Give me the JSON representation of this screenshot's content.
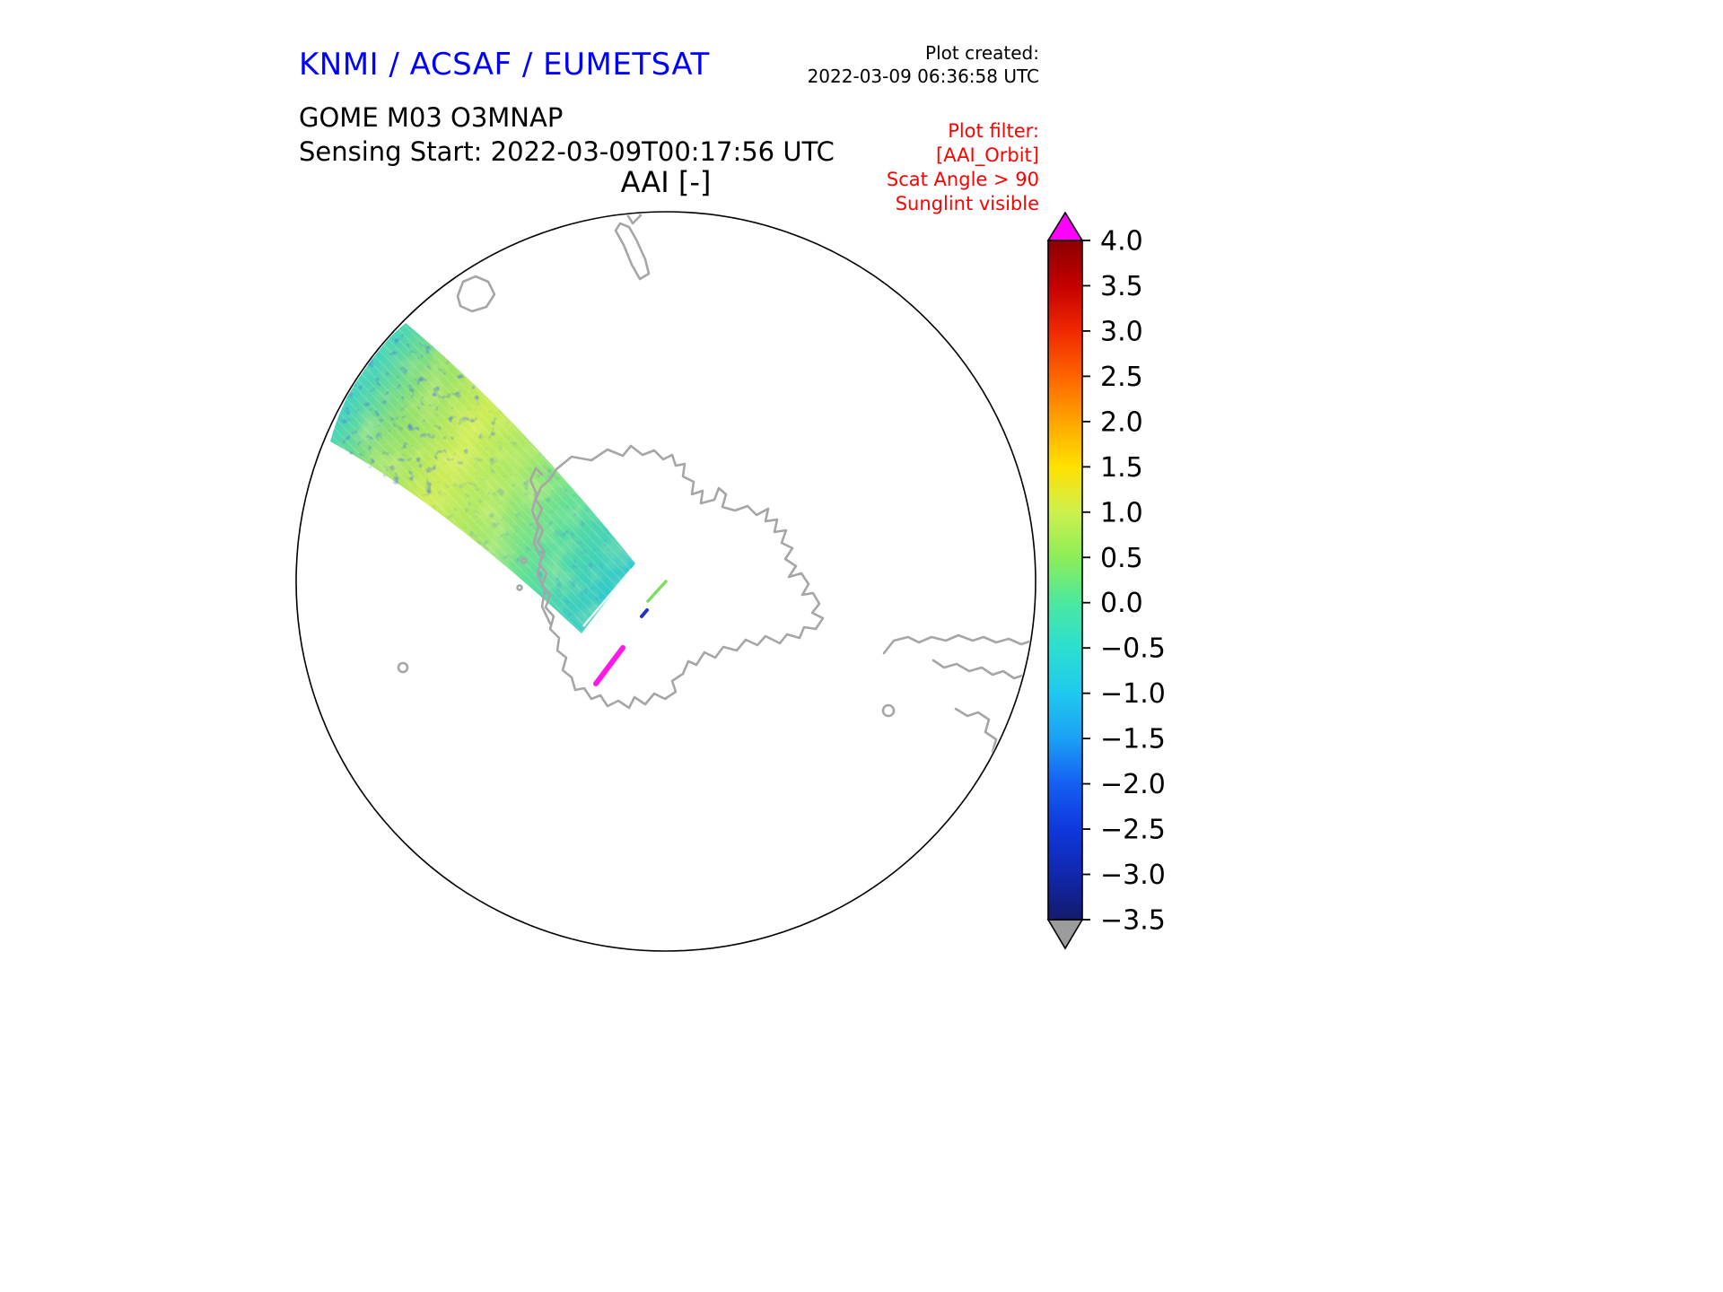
{
  "header": {
    "agency_title": "KNMI / ACSAF / EUMETSAT",
    "agency_color": "#0000ff",
    "plot_created_label": "Plot created:",
    "plot_created_value": "2022-03-09 06:36:58 UTC",
    "product_line": "GOME M03 O3MNAP",
    "sensing_line": "Sensing Start: 2022-03-09T00:17:56 UTC"
  },
  "plot_filter": {
    "color": "#ff0000",
    "lines": [
      "Plot filter:",
      "[AAI_Orbit]",
      "Scat Angle > 90",
      "Sunglint visible"
    ]
  },
  "chart_data": {
    "type": "heatmap",
    "title": "AAI [-]",
    "variable": "Absorbing Aerosol Index",
    "units": "-",
    "instrument": "GOME Metop-03, product O3MNAP",
    "projection": "south polar stereographic globe view with gray coastlines (Antarctica centered)",
    "map": {
      "outline_color": "#000000",
      "coastline_color": "#a6a6a6",
      "background": "#ffffff"
    },
    "swath": {
      "description": "Single orbital swath of AAI values crossing from the upper-left limb of the globe toward the Antarctic Peninsula",
      "dominant_value_range": [
        -1.0,
        1.0
      ],
      "base_colors": [
        "#45d4bb",
        "#8fe070",
        "#cdec55",
        "#a8e868",
        "#5fdf9a",
        "#2fc9cd"
      ],
      "speckle_color": "#0f2ecc",
      "anomaly_streak_color": "#ff18e8"
    },
    "colorbar": {
      "orientation": "vertical",
      "range": [
        -3.5,
        4.0
      ],
      "tick_step": 0.5,
      "tick_labels": [
        "4.0",
        "3.5",
        "3.0",
        "2.5",
        "2.0",
        "1.5",
        "1.0",
        "0.5",
        "0.0",
        "−0.5",
        "−1.0",
        "−1.5",
        "−2.0",
        "−2.5",
        "−3.0",
        "−3.5"
      ],
      "tick_values": [
        4.0,
        3.5,
        3.0,
        2.5,
        2.0,
        1.5,
        1.0,
        0.5,
        0.0,
        -0.5,
        -1.0,
        -1.5,
        -2.0,
        -2.5,
        -3.0,
        -3.5
      ],
      "over_arrow_color": "#ff00ff",
      "under_arrow_color": "#9c9c9c",
      "gradient_stops": [
        {
          "value": 4.0,
          "color": "#8b0000"
        },
        {
          "value": 3.5,
          "color": "#c40000"
        },
        {
          "value": 3.0,
          "color": "#f02800"
        },
        {
          "value": 2.5,
          "color": "#ff6400"
        },
        {
          "value": 2.0,
          "color": "#ffa500"
        },
        {
          "value": 1.5,
          "color": "#ffe100"
        },
        {
          "value": 1.0,
          "color": "#cdf04e"
        },
        {
          "value": 0.5,
          "color": "#8cee58"
        },
        {
          "value": 0.0,
          "color": "#4ce8a0"
        },
        {
          "value": -0.5,
          "color": "#2bdfd0"
        },
        {
          "value": -1.0,
          "color": "#1fc9ee"
        },
        {
          "value": -1.5,
          "color": "#1ba0f5"
        },
        {
          "value": -2.0,
          "color": "#145ff2"
        },
        {
          "value": -2.5,
          "color": "#0e38dc"
        },
        {
          "value": -3.0,
          "color": "#1127ae"
        },
        {
          "value": -3.5,
          "color": "#131b6b"
        }
      ]
    }
  }
}
